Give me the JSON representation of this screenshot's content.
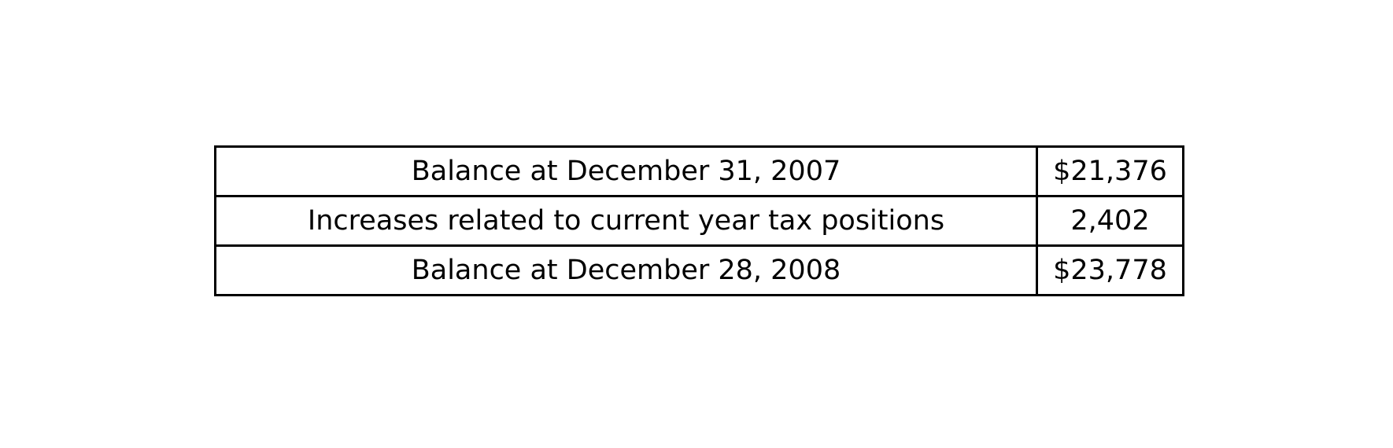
{
  "table": {
    "rows": [
      {
        "label": "Balance at December 31, 2007",
        "value": "$21,376"
      },
      {
        "label": "Increases related to current year tax positions",
        "value": "2,402"
      },
      {
        "label": "Balance at December 28, 2008",
        "value": "$23,778"
      }
    ]
  }
}
